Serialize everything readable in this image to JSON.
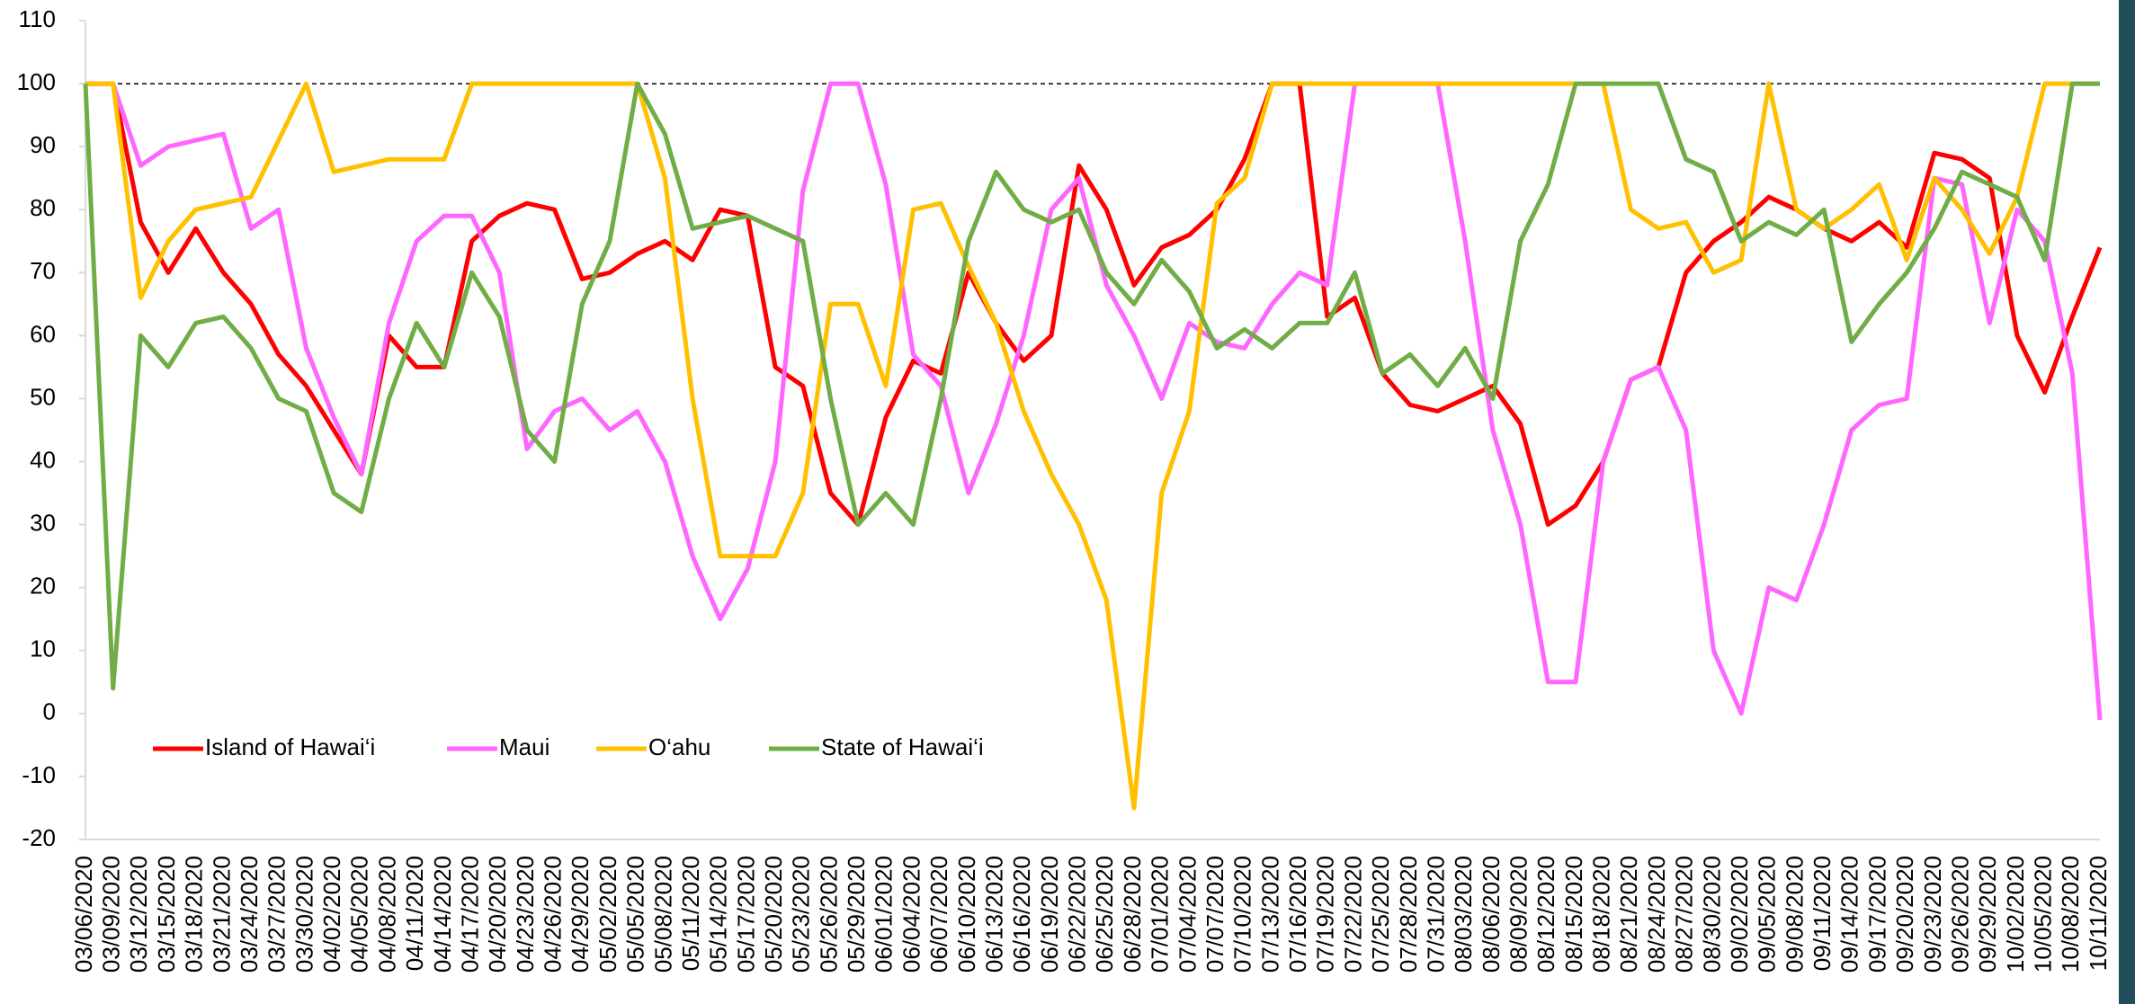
{
  "chart_data": {
    "type": "line",
    "categories": [
      "03/06/2020",
      "03/09/2020",
      "03/12/2020",
      "03/15/2020",
      "03/18/2020",
      "03/21/2020",
      "03/24/2020",
      "03/27/2020",
      "03/30/2020",
      "04/02/2020",
      "04/05/2020",
      "04/08/2020",
      "04/11/2020",
      "04/14/2020",
      "04/17/2020",
      "04/20/2020",
      "04/23/2020",
      "04/26/2020",
      "04/29/2020",
      "05/02/2020",
      "05/05/2020",
      "05/08/2020",
      "05/11/2020",
      "05/14/2020",
      "05/17/2020",
      "05/20/2020",
      "05/23/2020",
      "05/26/2020",
      "05/29/2020",
      "06/01/2020",
      "06/04/2020",
      "06/07/2020",
      "06/10/2020",
      "06/13/2020",
      "06/16/2020",
      "06/19/2020",
      "06/22/2020",
      "06/25/2020",
      "06/28/2020",
      "07/01/2020",
      "07/04/2020",
      "07/07/2020",
      "07/10/2020",
      "07/13/2020",
      "07/16/2020",
      "07/19/2020",
      "07/22/2020",
      "07/25/2020",
      "07/28/2020",
      "07/31/2020",
      "08/03/2020",
      "08/06/2020",
      "08/09/2020",
      "08/12/2020",
      "08/15/2020",
      "08/18/2020",
      "08/21/2020",
      "08/24/2020",
      "08/27/2020",
      "08/30/2020",
      "09/02/2020",
      "09/05/2020",
      "09/08/2020",
      "09/11/2020",
      "09/14/2020",
      "09/17/2020",
      "09/20/2020",
      "09/23/2020",
      "09/26/2020",
      "09/29/2020",
      "10/02/2020",
      "10/05/2020",
      "10/08/2020",
      "10/11/2020"
    ],
    "series": [
      {
        "name": "Island of Hawai‘i",
        "color": "#ff0000",
        "values": [
          100,
          100,
          78,
          70,
          77,
          70,
          65,
          57,
          52,
          45,
          38,
          60,
          55,
          55,
          75,
          79,
          81,
          80,
          69,
          70,
          73,
          75,
          72,
          80,
          79,
          55,
          52,
          35,
          30,
          47,
          56,
          54,
          70,
          62,
          56,
          60,
          87,
          80,
          68,
          74,
          76,
          80,
          88,
          100,
          100,
          63,
          66,
          54,
          49,
          48,
          50,
          52,
          46,
          30,
          33,
          40,
          53,
          55,
          70,
          75,
          78,
          82,
          80,
          77,
          75,
          78,
          74,
          89,
          88,
          85,
          60,
          51,
          63,
          74
        ]
      },
      {
        "name": "Maui",
        "color": "#ff66ff",
        "values": [
          100,
          100,
          87,
          90,
          91,
          92,
          77,
          80,
          58,
          47,
          38,
          62,
          75,
          79,
          79,
          70,
          42,
          48,
          50,
          45,
          48,
          40,
          25,
          15,
          23,
          40,
          83,
          100,
          100,
          84,
          57,
          52,
          35,
          46,
          60,
          80,
          85,
          68,
          60,
          50,
          62,
          59,
          58,
          65,
          70,
          68,
          100,
          100,
          100,
          100,
          75,
          45,
          30,
          5,
          5,
          40,
          53,
          55,
          45,
          10,
          0,
          20,
          18,
          30,
          45,
          49,
          50,
          85,
          84,
          62,
          80,
          75,
          54,
          -1
        ]
      },
      {
        "name": "O‘ahu",
        "color": "#ffc000",
        "values": [
          100,
          100,
          66,
          75,
          80,
          81,
          82,
          91,
          100,
          86,
          87,
          88,
          88,
          88,
          100,
          100,
          100,
          100,
          100,
          100,
          100,
          85,
          50,
          25,
          25,
          25,
          35,
          65,
          65,
          52,
          80,
          81,
          71,
          62,
          48,
          38,
          30,
          18,
          -15,
          35,
          48,
          81,
          85,
          100,
          100,
          100,
          100,
          100,
          100,
          100,
          100,
          100,
          100,
          100,
          100,
          100,
          80,
          77,
          78,
          70,
          72,
          100,
          80,
          77,
          80,
          84,
          72,
          85,
          80,
          73,
          82,
          100,
          100,
          100
        ]
      },
      {
        "name": "State of Hawai‘i",
        "color": "#70ad47",
        "values": [
          100,
          4,
          60,
          55,
          62,
          63,
          58,
          50,
          48,
          35,
          32,
          50,
          62,
          55,
          70,
          63,
          45,
          40,
          65,
          75,
          100,
          92,
          77,
          78,
          79,
          77,
          75,
          50,
          30,
          35,
          30,
          50,
          75,
          86,
          80,
          78,
          80,
          70,
          65,
          72,
          67,
          58,
          61,
          58,
          62,
          62,
          70,
          54,
          57,
          52,
          58,
          50,
          75,
          84,
          100,
          100,
          100,
          100,
          88,
          86,
          75,
          78,
          76,
          80,
          59,
          65,
          70,
          77,
          86,
          84,
          82,
          72,
          100,
          100
        ]
      }
    ],
    "ylim": [
      -20,
      110
    ],
    "yticks": [
      -20,
      -10,
      0,
      10,
      20,
      30,
      40,
      50,
      60,
      70,
      80,
      90,
      100,
      110
    ],
    "reference_line": 100,
    "legend": "lower left"
  }
}
